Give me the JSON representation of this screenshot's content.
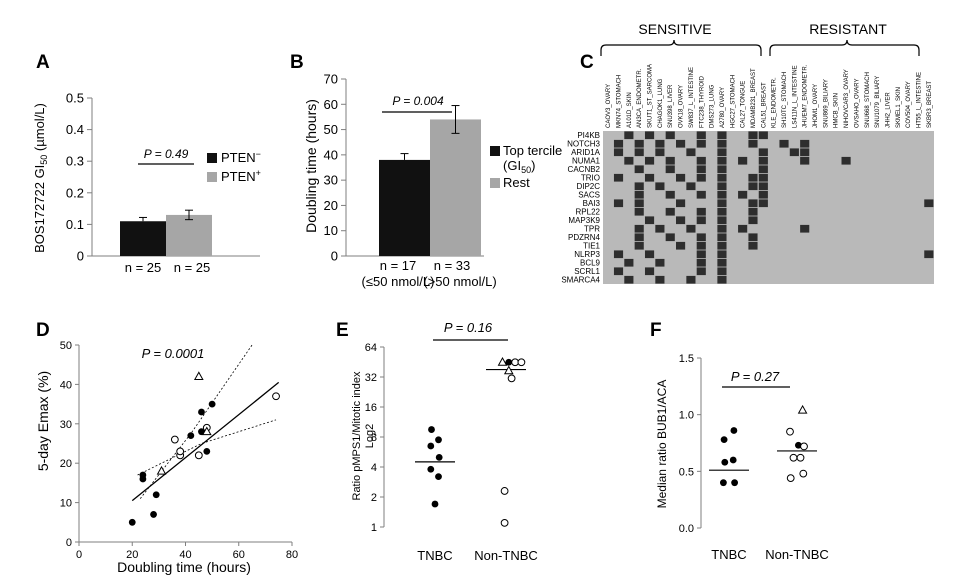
{
  "panels": {
    "A": {
      "letter": "A",
      "ylabel": "BOS172722 GI",
      "ylabel_sub": "50",
      "ylabel_unit": " (µmol/L)",
      "p_value": "P = 0.49",
      "legend": [
        "PTEN",
        "PTEN"
      ],
      "legend_sup": [
        "−",
        "+"
      ],
      "n_labels": [
        "n = 25",
        "n = 25"
      ]
    },
    "B": {
      "letter": "B",
      "ylabel": "Doubling time (hours)",
      "p_value": "P = 0.004",
      "legend": [
        "Top tercile",
        "Rest"
      ],
      "legend_gi": "(GI",
      "legend_gi_sub": "50",
      "legend_gi_end": ")",
      "n_labels": [
        "n = 17",
        "n = 33"
      ],
      "x_sub": [
        "(≤50 nmol/L)",
        "(>50 nmol/L)"
      ]
    },
    "C": {
      "letter": "C",
      "group_labels": [
        "SENSITIVE",
        "RESISTANT"
      ],
      "genes": [
        "PI4KB",
        "NOTCH3",
        "ARID1A",
        "NUMA1",
        "CACNB2",
        "TRIO",
        "DIP2C",
        "SACS",
        "BAI3",
        "RPL22",
        "MAP3K9",
        "TPR",
        "PDZRN4",
        "TIE1",
        "NLRP3",
        "BCL9",
        "SCRL1",
        "SMARCA4"
      ],
      "sensitive_lines": [
        "CAOV3_OVARY",
        "MKN74_STOMACH",
        "A101D_SKIN",
        "AN3CA_ENDOMETR.",
        "SKUT1_ST_SARCOMA",
        "CHAGOK1_LUNG",
        "SNU398_LIVER",
        "OVK18_OVARY",
        "SW837_L_INTESTINE",
        "FTC238_THYROID",
        "DMS273_LUNG",
        "A2780_OVARY",
        "HGC27_STOMACH",
        "CAL27_TONGUE",
        "MDAMB231_BREAST",
        "CAL51_BREAST"
      ],
      "resistant_lines": [
        "KLE_ENDOMETR.",
        "SH10TC_STOMACH",
        "LS411N_L_INTESTINE",
        "JHUEM7_ENDOMETR.",
        "JHOM1_OVARY",
        "SNU869_BILIARY",
        "HMCB_SKIN",
        "NIHOVCAR3_OVARY",
        "OVSAHO_OVARY",
        "SNU668_STOMACH",
        "SNU1079_BILIARY",
        "JHH2_LIVER",
        "SKMEL1_SKIN",
        "COV504_OVARY",
        "HT55_L_INTESTINE",
        "SKBR3_BREAST"
      ]
    },
    "D": {
      "letter": "D",
      "ylabel": "5-day Emax (%)",
      "xlabel": "Doubling time (hours)",
      "p_value": "P = 0.0001"
    },
    "E": {
      "letter": "E",
      "ylabel_1": "Ratio pMPS1/Mitotic index",
      "ylabel_2": "Log2",
      "p_value": "P = 0.16"
    },
    "F": {
      "letter": "F",
      "ylabel": "Median ratio BUB1/ACA",
      "p_value": "P = 0.27"
    }
  },
  "colors": {
    "black_bar": "#111111",
    "gray_bar": "#a6a6a6",
    "heat_bg": "#b9b9b9",
    "heat_hit": "#2e2e2e",
    "axis": "#7f7f7f"
  },
  "chart_data": [
    {
      "id": "A",
      "type": "bar",
      "categories": [
        "PTEN−",
        "PTEN+"
      ],
      "values": [
        0.11,
        0.13
      ],
      "errors": [
        0.012,
        0.015
      ],
      "ylabel": "BOS172722 GI50 (µmol/L)",
      "ylim": [
        0,
        0.5
      ],
      "yticks": [
        0,
        0.1,
        0.2,
        0.3,
        0.4,
        0.5
      ],
      "ytick_labels": [
        "0",
        "0.1",
        "0.2",
        "0.3",
        "0.4",
        "0.5"
      ],
      "legend_position": "right"
    },
    {
      "id": "B",
      "type": "bar",
      "categories": [
        "Top tercile (GI50)",
        "Rest"
      ],
      "values": [
        38,
        54
      ],
      "errors": [
        2.5,
        5.5
      ],
      "ylabel": "Doubling time (hours)",
      "ylim": [
        0,
        70
      ],
      "yticks": [
        0,
        10,
        20,
        30,
        40,
        50,
        60,
        70
      ],
      "ytick_labels": [
        "0",
        "10",
        "20",
        "30",
        "40",
        "50",
        "60",
        "70"
      ],
      "legend_position": "right"
    },
    {
      "id": "C",
      "type": "heatmap",
      "rows": [
        "PI4KB",
        "NOTCH3",
        "ARID1A",
        "NUMA1",
        "CACNB2",
        "TRIO",
        "DIP2C",
        "SACS",
        "BAI3",
        "RPL22",
        "MAP3K9",
        "TPR",
        "PDZRN4",
        "TIE1",
        "NLRP3",
        "BCL9",
        "SCRL1",
        "SMARCA4"
      ],
      "columns_count": 32,
      "groups": [
        {
          "name": "SENSITIVE",
          "columns": [
            0,
            15
          ]
        },
        {
          "name": "RESISTANT",
          "columns": [
            16,
            31
          ]
        }
      ],
      "mutated_cells": [
        [
          0,
          2
        ],
        [
          0,
          4
        ],
        [
          0,
          6
        ],
        [
          0,
          9
        ],
        [
          0,
          11
        ],
        [
          0,
          14
        ],
        [
          0,
          15
        ],
        [
          1,
          1
        ],
        [
          1,
          3
        ],
        [
          1,
          5
        ],
        [
          1,
          7
        ],
        [
          1,
          9
        ],
        [
          1,
          11
        ],
        [
          1,
          14
        ],
        [
          1,
          17
        ],
        [
          1,
          19
        ],
        [
          2,
          1
        ],
        [
          2,
          3
        ],
        [
          2,
          5
        ],
        [
          2,
          8
        ],
        [
          2,
          11
        ],
        [
          2,
          15
        ],
        [
          2,
          18
        ],
        [
          2,
          19
        ],
        [
          3,
          2
        ],
        [
          3,
          4
        ],
        [
          3,
          6
        ],
        [
          3,
          9
        ],
        [
          3,
          11
        ],
        [
          3,
          13
        ],
        [
          3,
          15
        ],
        [
          3,
          19
        ],
        [
          3,
          23
        ],
        [
          4,
          3
        ],
        [
          4,
          6
        ],
        [
          4,
          9
        ],
        [
          4,
          11
        ],
        [
          4,
          15
        ],
        [
          5,
          1
        ],
        [
          5,
          4
        ],
        [
          5,
          7
        ],
        [
          5,
          9
        ],
        [
          5,
          11
        ],
        [
          5,
          14
        ],
        [
          5,
          15
        ],
        [
          6,
          3
        ],
        [
          6,
          5
        ],
        [
          6,
          8
        ],
        [
          6,
          11
        ],
        [
          6,
          14
        ],
        [
          6,
          15
        ],
        [
          7,
          3
        ],
        [
          7,
          6
        ],
        [
          7,
          9
        ],
        [
          7,
          11
        ],
        [
          7,
          13
        ],
        [
          7,
          15
        ],
        [
          8,
          1
        ],
        [
          8,
          3
        ],
        [
          8,
          7
        ],
        [
          8,
          11
        ],
        [
          8,
          14
        ],
        [
          8,
          15
        ],
        [
          8,
          31
        ],
        [
          9,
          3
        ],
        [
          9,
          6
        ],
        [
          9,
          9
        ],
        [
          9,
          11
        ],
        [
          9,
          14
        ],
        [
          10,
          4
        ],
        [
          10,
          7
        ],
        [
          10,
          9
        ],
        [
          10,
          11
        ],
        [
          10,
          14
        ],
        [
          11,
          3
        ],
        [
          11,
          5
        ],
        [
          11,
          8
        ],
        [
          11,
          11
        ],
        [
          11,
          13
        ],
        [
          11,
          19
        ],
        [
          12,
          3
        ],
        [
          12,
          6
        ],
        [
          12,
          9
        ],
        [
          12,
          11
        ],
        [
          12,
          14
        ],
        [
          13,
          3
        ],
        [
          13,
          7
        ],
        [
          13,
          9
        ],
        [
          13,
          11
        ],
        [
          13,
          14
        ],
        [
          14,
          1
        ],
        [
          14,
          4
        ],
        [
          14,
          9
        ],
        [
          14,
          11
        ],
        [
          14,
          31
        ],
        [
          15,
          2
        ],
        [
          15,
          5
        ],
        [
          15,
          9
        ],
        [
          15,
          11
        ],
        [
          16,
          1
        ],
        [
          16,
          4
        ],
        [
          16,
          9
        ],
        [
          16,
          11
        ],
        [
          17,
          2
        ],
        [
          17,
          5
        ],
        [
          17,
          8
        ],
        [
          17,
          11
        ]
      ]
    },
    {
      "id": "D",
      "type": "scatter",
      "xlabel": "Doubling time (hours)",
      "ylabel": "5-day Emax (%)",
      "xlim": [
        0,
        80
      ],
      "ylim": [
        0,
        50
      ],
      "xticks": [
        0,
        20,
        40,
        60,
        80
      ],
      "yticks": [
        0,
        10,
        20,
        30,
        40,
        50
      ],
      "series": [
        {
          "name": "filled",
          "marker": "filled-circle",
          "points": [
            [
              20,
              5
            ],
            [
              24,
              16
            ],
            [
              24,
              17
            ],
            [
              28,
              7
            ],
            [
              29,
              12
            ],
            [
              42,
              27
            ],
            [
              46,
              33
            ],
            [
              48,
              23
            ],
            [
              50,
              35
            ],
            [
              46,
              28
            ]
          ]
        },
        {
          "name": "open",
          "marker": "open-circle",
          "points": [
            [
              36,
              26
            ],
            [
              38,
              22
            ],
            [
              38,
              23
            ],
            [
              45,
              22
            ],
            [
              48,
              29
            ],
            [
              74,
              37
            ]
          ]
        },
        {
          "name": "triangle",
          "marker": "open-triangle",
          "points": [
            [
              31,
              18
            ],
            [
              45,
              42
            ],
            [
              48,
              28
            ]
          ]
        }
      ],
      "regression": {
        "x": [
          20,
          75
        ],
        "y": [
          10.5,
          40.5
        ]
      },
      "ci_upper": {
        "x": [
          23,
          42,
          65
        ],
        "y": [
          11,
          27.5,
          50
        ]
      },
      "ci_lower": {
        "x": [
          22,
          46,
          74
        ],
        "y": [
          17,
          25,
          31
        ]
      }
    },
    {
      "id": "E",
      "type": "scatter",
      "categories": [
        "TNBC",
        "Non-TNBC"
      ],
      "ylabel": "Ratio pMPS1/Mitotic index Log2",
      "yscale": "log2",
      "ylim": [
        1,
        64
      ],
      "yticks": [
        1,
        2,
        4,
        8,
        16,
        32,
        64
      ],
      "series": [
        {
          "name": "TNBC",
          "marker": "filled-circle",
          "points": [
            [
              -0.05,
              9.5
            ],
            [
              0.05,
              7.5
            ],
            [
              -0.06,
              6.5
            ],
            [
              0.06,
              5.0
            ],
            [
              -0.06,
              3.8
            ],
            [
              0.05,
              3.2
            ],
            [
              0,
              1.7
            ]
          ]
        },
        {
          "name": "Non-TNBC filled",
          "marker": "filled-circle",
          "points": [
            [
              0.04,
              45
            ]
          ]
        },
        {
          "name": "Non-TNBC open",
          "marker": "open-circle",
          "points": [
            [
              0.13,
              45
            ],
            [
              0.22,
              45
            ],
            [
              0.08,
              31
            ],
            [
              -0.02,
              2.3
            ],
            [
              -0.02,
              1.1
            ]
          ]
        },
        {
          "name": "Non-TNBC triangle",
          "marker": "open-triangle",
          "points": [
            [
              -0.05,
              45
            ],
            [
              0.04,
              37
            ]
          ]
        }
      ],
      "medians": [
        4.5,
        38
      ]
    },
    {
      "id": "F",
      "type": "scatter",
      "categories": [
        "TNBC",
        "Non-TNBC"
      ],
      "ylabel": "Median ratio BUB1/ACA",
      "ylim": [
        0,
        1.5
      ],
      "yticks": [
        0,
        0.5,
        1.0,
        1.5
      ],
      "ytick_labels": [
        "0.0",
        "0.5",
        "1.0",
        "1.5"
      ],
      "series": [
        {
          "name": "TNBC",
          "marker": "filled-circle",
          "points": [
            [
              0.07,
              0.86
            ],
            [
              -0.07,
              0.78
            ],
            [
              0.06,
              0.6
            ],
            [
              -0.06,
              0.58
            ],
            [
              -0.08,
              0.4
            ],
            [
              0.08,
              0.4
            ]
          ]
        },
        {
          "name": "Non-TNBC filled",
          "marker": "filled-circle",
          "points": [
            [
              0.02,
              0.73
            ]
          ]
        },
        {
          "name": "Non-TNBC open",
          "marker": "open-circle",
          "points": [
            [
              -0.1,
              0.85
            ],
            [
              0.1,
              0.72
            ],
            [
              0.05,
              0.62
            ],
            [
              -0.05,
              0.62
            ],
            [
              -0.09,
              0.44
            ],
            [
              0.09,
              0.48
            ]
          ]
        },
        {
          "name": "Non-TNBC triangle",
          "marker": "open-triangle",
          "points": [
            [
              0.08,
              1.04
            ]
          ]
        }
      ],
      "medians": [
        0.51,
        0.68
      ]
    }
  ]
}
